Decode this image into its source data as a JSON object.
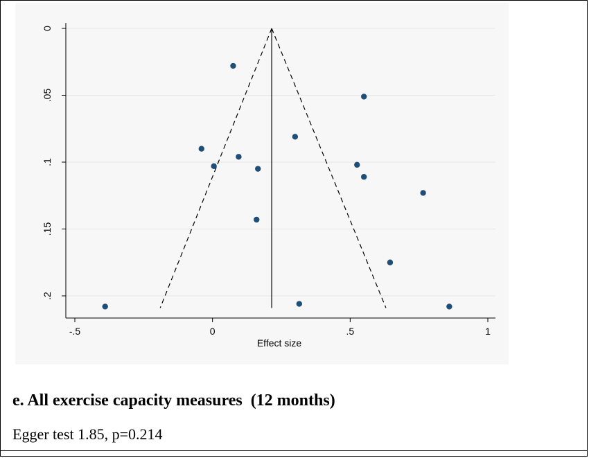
{
  "chart_data": {
    "type": "scatter",
    "xlabel": "Effect size",
    "ylabel": "",
    "x_ticks": [
      "-.5",
      "0",
      ".5",
      "1"
    ],
    "x_tick_values": [
      -0.5,
      0,
      0.5,
      1
    ],
    "y_ticks": [
      "0",
      ".05",
      ".1",
      ".15",
      ".2"
    ],
    "y_tick_values": [
      0,
      0.05,
      0.1,
      0.15,
      0.2
    ],
    "xlim": [
      -0.5,
      1
    ],
    "ylim": [
      0,
      0.2
    ],
    "y_reversed": true,
    "grid": true,
    "pooled_effect": 0.215,
    "funnel_bottom_se": 0.208,
    "funnel_bottom_left": -0.19,
    "funnel_bottom_right": 0.63,
    "points": [
      {
        "x": 0.075,
        "y": 0.028
      },
      {
        "x": 0.55,
        "y": 0.051
      },
      {
        "x": 0.3,
        "y": 0.081
      },
      {
        "x": -0.04,
        "y": 0.09
      },
      {
        "x": 0.095,
        "y": 0.096
      },
      {
        "x": 0.005,
        "y": 0.103
      },
      {
        "x": 0.165,
        "y": 0.105
      },
      {
        "x": 0.525,
        "y": 0.102
      },
      {
        "x": 0.55,
        "y": 0.111
      },
      {
        "x": 0.765,
        "y": 0.123
      },
      {
        "x": 0.16,
        "y": 0.143
      },
      {
        "x": 0.645,
        "y": 0.175
      },
      {
        "x": -0.39,
        "y": 0.208
      },
      {
        "x": 0.315,
        "y": 0.206
      },
      {
        "x": 0.86,
        "y": 0.208
      }
    ]
  },
  "caption": "e. All exercise capacity measures  (12 months)",
  "subcaption": "Egger test 1.85, p=0.214",
  "colors": {
    "point": "#1f4e79",
    "line": "#000000",
    "grid": "#e6e6e6",
    "panel": "#f7f7f7"
  }
}
